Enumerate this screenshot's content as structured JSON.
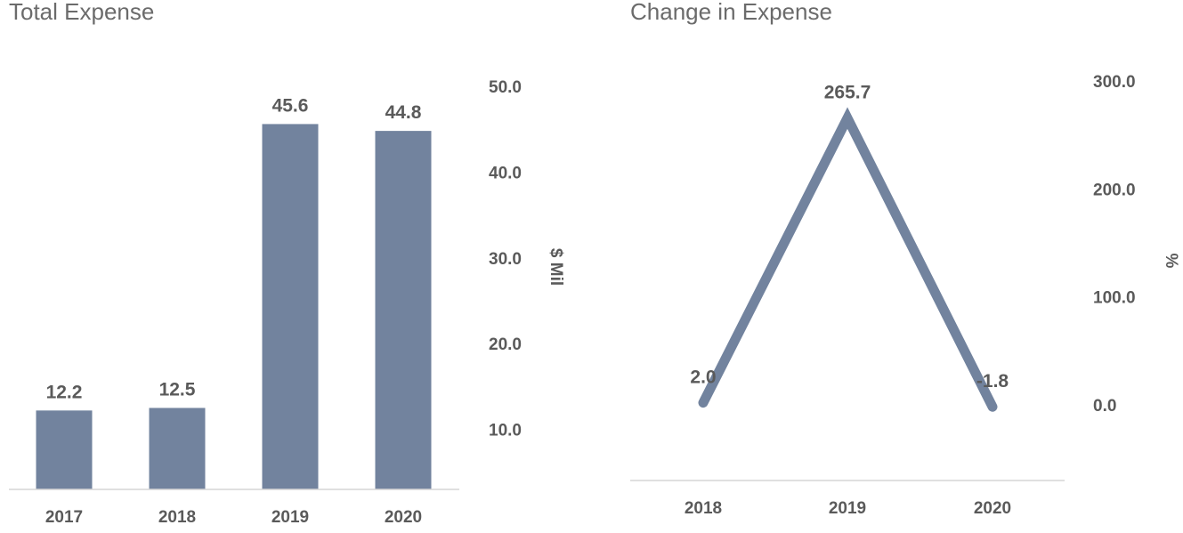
{
  "chart_data": [
    {
      "type": "bar",
      "title": "Total Expense",
      "categories": [
        "2017",
        "2018",
        "2019",
        "2020"
      ],
      "values": [
        12.2,
        12.5,
        45.6,
        44.8
      ],
      "data_labels": [
        "12.2",
        "12.5",
        "45.6",
        "44.8"
      ],
      "ylabel": "$ Mil",
      "yticks": [
        "10.0",
        "20.0",
        "30.0",
        "40.0",
        "50.0"
      ],
      "ylim": [
        3.0,
        50.0
      ],
      "y_axis_side": "right",
      "grid": false,
      "color": "#72839e"
    },
    {
      "type": "line",
      "title": "Change in Expense",
      "categories": [
        "2018",
        "2019",
        "2020"
      ],
      "values": [
        2.0,
        265.7,
        -1.8
      ],
      "data_labels": [
        "2.0",
        "265.7",
        "-1.8"
      ],
      "ylabel": "%",
      "yticks": [
        "0.0",
        "100.0",
        "200.0",
        "300.0"
      ],
      "ylim": [
        -70.0,
        300.0
      ],
      "y_axis_side": "right",
      "grid": false,
      "color": "#72839e"
    }
  ]
}
